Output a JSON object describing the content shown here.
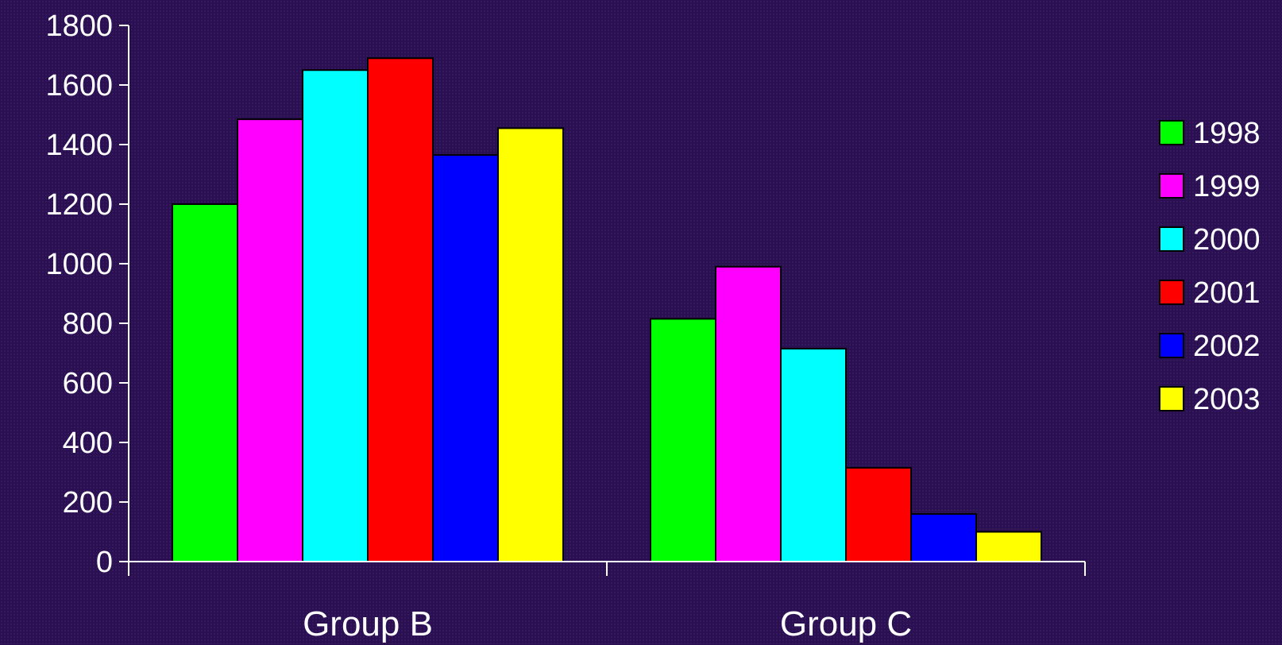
{
  "chart_data": {
    "type": "bar",
    "categories": [
      "Group B",
      "Group C"
    ],
    "series": [
      {
        "name": "1998",
        "color": "#00ff00",
        "values": [
          1200,
          815
        ]
      },
      {
        "name": "1999",
        "color": "#ff00ff",
        "values": [
          1485,
          990
        ]
      },
      {
        "name": "2000",
        "color": "#00ffff",
        "values": [
          1650,
          715
        ]
      },
      {
        "name": "2001",
        "color": "#ff0000",
        "values": [
          1690,
          315
        ]
      },
      {
        "name": "2002",
        "color": "#0000ff",
        "values": [
          1365,
          160
        ]
      },
      {
        "name": "2003",
        "color": "#ffff00",
        "values": [
          1455,
          100
        ]
      }
    ],
    "yticks": [
      "0",
      "200",
      "400",
      "600",
      "800",
      "1000",
      "1200",
      "1400",
      "1600",
      "1800"
    ],
    "ylim": [
      0,
      1800
    ],
    "grid": false,
    "legend": "right",
    "background_color": "#2a0f52",
    "axis_color": "#ffffff"
  }
}
